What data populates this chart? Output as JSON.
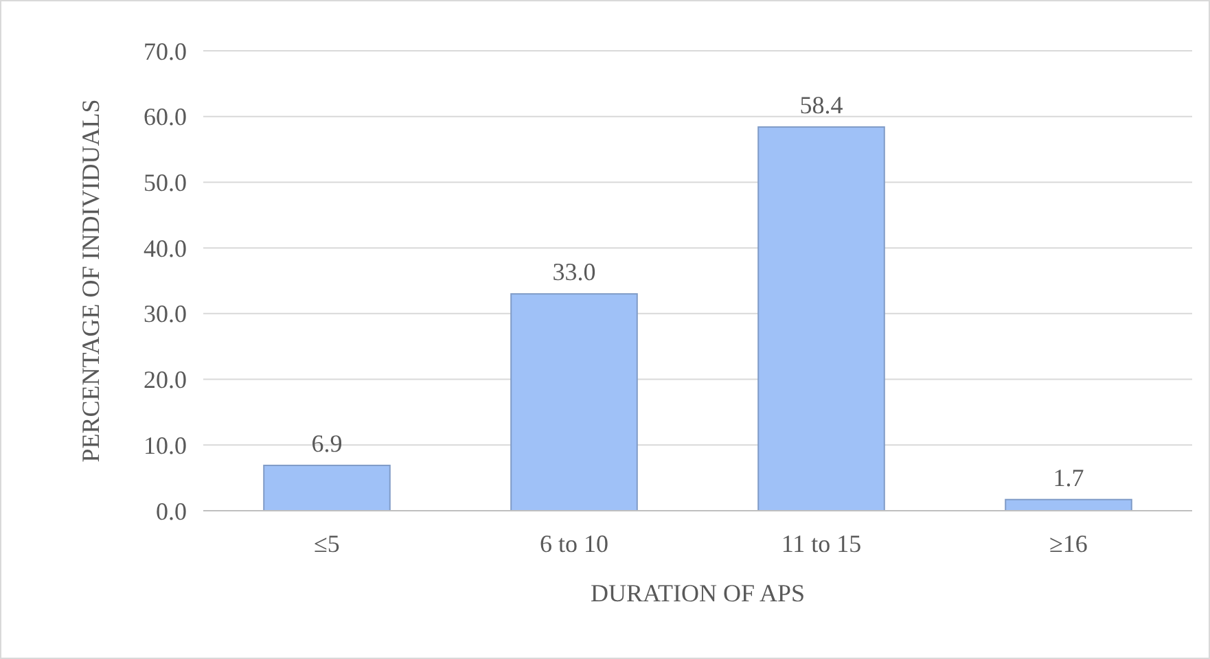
{
  "chart_data": {
    "type": "bar",
    "xlabel": "DURATION OF APS",
    "ylabel": "PERCENTAGE OF INDIVIDUALS",
    "categories": [
      "≤5",
      "6 to 10",
      "11 to 15",
      "≥16"
    ],
    "values": [
      6.9,
      33.0,
      58.4,
      1.7
    ],
    "value_labels": [
      "6.9",
      "33.0",
      "58.4",
      "1.7"
    ],
    "color": "#9fc1f7",
    "ylim": [
      0,
      70
    ],
    "yticks": [
      {
        "value": 0,
        "label": "0.0"
      },
      {
        "value": 10,
        "label": "10.0"
      },
      {
        "value": 20,
        "label": "20.0"
      },
      {
        "value": 30,
        "label": "30.0"
      },
      {
        "value": 40,
        "label": "40.0"
      },
      {
        "value": 50,
        "label": "50.0"
      },
      {
        "value": 60,
        "label": "60.0"
      },
      {
        "value": 70,
        "label": "70.0"
      }
    ],
    "grid": "y"
  }
}
